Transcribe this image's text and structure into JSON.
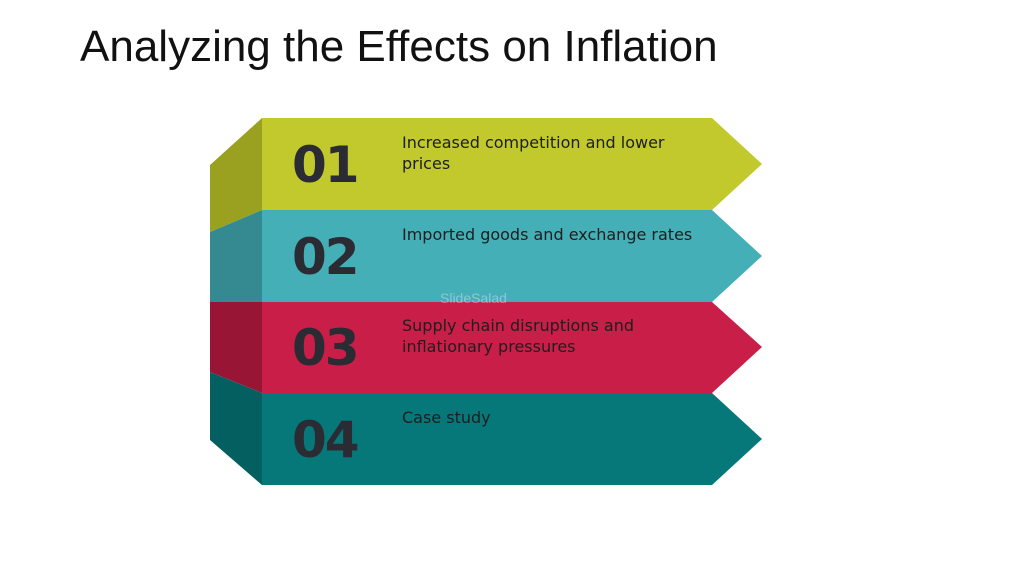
{
  "title": "Analyzing the Effects on Inflation",
  "steps": [
    {
      "number": "01",
      "label": "Increased competition and lower prices",
      "color": "#c2c92c",
      "side_color": "#9aa120"
    },
    {
      "number": "02",
      "label": "Imported goods and exchange rates",
      "color": "#45afb7",
      "side_color": "#348a90"
    },
    {
      "number": "03",
      "label": "Supply chain disruptions and inflationary pressures",
      "color": "#c81e48",
      "side_color": "#991535"
    },
    {
      "number": "04",
      "label": "Case study",
      "color": "#06787a",
      "side_color": "#045f61"
    }
  ]
}
